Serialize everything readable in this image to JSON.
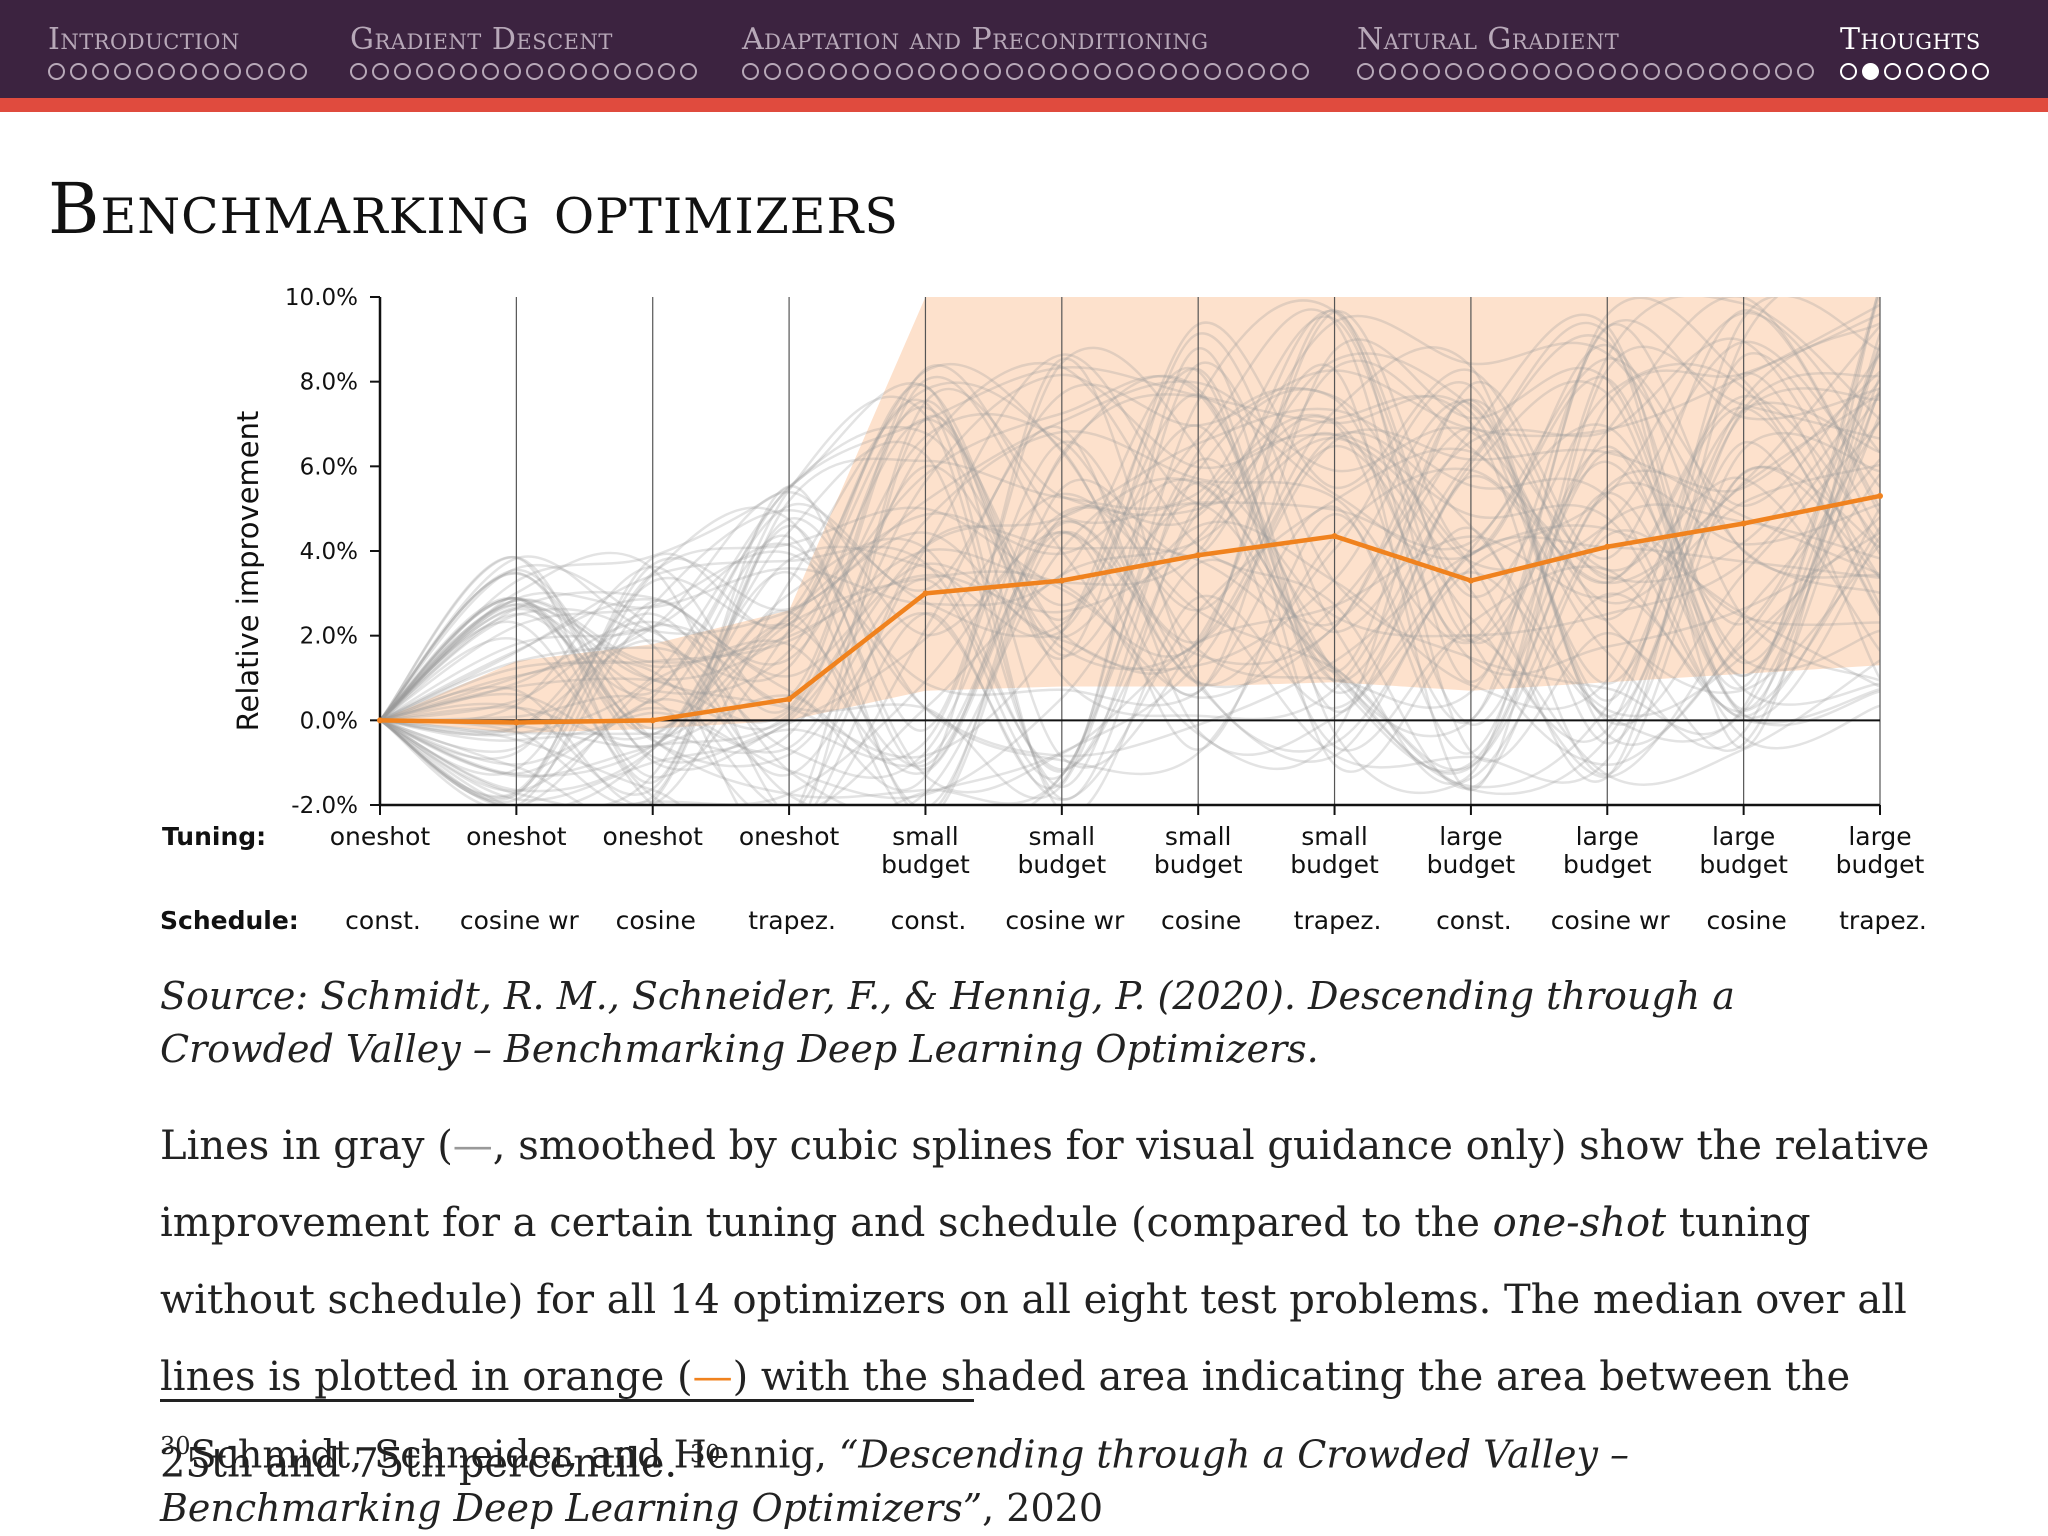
{
  "nav": {
    "sections": [
      {
        "title": "Introduction",
        "dots": 12,
        "filled": -1,
        "active": false
      },
      {
        "title": "Gradient Descent",
        "dots": 16,
        "filled": -1,
        "active": false
      },
      {
        "title": "Adaptation and Preconditioning",
        "dots": 26,
        "filled": -1,
        "active": false
      },
      {
        "title": "Natural Gradient",
        "dots": 21,
        "filled": -1,
        "active": false
      },
      {
        "title": "Thoughts",
        "dots": 7,
        "filled": 1,
        "active": true
      }
    ]
  },
  "slide": {
    "title": "Benchmarking optimizers"
  },
  "chart_data": {
    "type": "line",
    "ylabel": "Relative improvement",
    "ylim": [
      -2.0,
      10.0
    ],
    "yticks": [
      "-2.0%",
      "0.0%",
      "2.0%",
      "4.0%",
      "6.0%",
      "8.0%",
      "10.0%"
    ],
    "row_labels": {
      "tuning": "Tuning:",
      "schedule": "Schedule:"
    },
    "categories": [
      {
        "tuning": [
          "oneshot"
        ],
        "schedule": "const."
      },
      {
        "tuning": [
          "oneshot"
        ],
        "schedule": "cosine wr"
      },
      {
        "tuning": [
          "oneshot"
        ],
        "schedule": "cosine"
      },
      {
        "tuning": [
          "oneshot"
        ],
        "schedule": "trapez."
      },
      {
        "tuning": [
          "small",
          "budget"
        ],
        "schedule": "const."
      },
      {
        "tuning": [
          "small",
          "budget"
        ],
        "schedule": "cosine wr"
      },
      {
        "tuning": [
          "small",
          "budget"
        ],
        "schedule": "cosine"
      },
      {
        "tuning": [
          "small",
          "budget"
        ],
        "schedule": "trapez."
      },
      {
        "tuning": [
          "large",
          "budget"
        ],
        "schedule": "const."
      },
      {
        "tuning": [
          "large",
          "budget"
        ],
        "schedule": "cosine wr"
      },
      {
        "tuning": [
          "large",
          "budget"
        ],
        "schedule": "cosine"
      },
      {
        "tuning": [
          "large",
          "budget"
        ],
        "schedule": "trapez."
      }
    ],
    "median": [
      0.0,
      -0.05,
      0.0,
      0.5,
      3.0,
      3.3,
      3.9,
      4.35,
      3.3,
      4.1,
      4.65,
      5.3
    ],
    "percentile_25": [
      0.0,
      -0.3,
      -0.2,
      0.0,
      0.7,
      0.8,
      0.8,
      0.9,
      0.7,
      0.9,
      1.1,
      1.3
    ],
    "percentile_75": [
      0.0,
      1.4,
      1.8,
      2.6,
      10.0,
      10.0,
      10.0,
      10.0,
      10.0,
      10.0,
      10.0,
      10.0
    ],
    "colors": {
      "median": "#f0821e",
      "band": "#fde1cc",
      "lines": "#9a9a9a"
    },
    "gray_lines_note": "background gray lines represent per-optimizer/problem improvements"
  },
  "source_text": "Source: Schmidt, R. M., Schneider, F., & Hennig, P. (2020). Descending through a Crowded Valley – Benchmarking Deep Learning Optimizers.",
  "desc": {
    "p1": "Lines in gray (",
    "gray_dash": "—",
    "p2": ", smoothed by cubic splines for visual guidance only) show the relative improvement for a certain tuning and schedule (compared to the ",
    "em": "one-shot",
    "p3": " tuning without schedule) for all 14 optimizers on all eight test problems. The median over all lines is plotted in orange (",
    "orange_dash": "—",
    "p4": ") with the shaded area indicating the area between the 25th and 75th percentile. ",
    "ref": "30"
  },
  "footnote": {
    "num": "30",
    "authors": "Schmidt, Schneider, and Hennig, ",
    "title": "“Descending through a Crowded Valley – Benchmarking Deep Learning Optimizers”",
    "year": ", 2020"
  }
}
